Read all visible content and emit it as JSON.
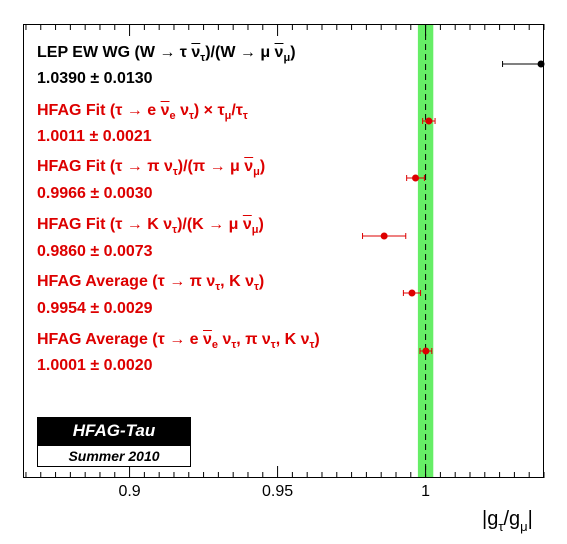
{
  "chart_data": {
    "type": "scatter",
    "xlabel": "|gτ/gμ|",
    "xlim": [
      0.864,
      1.04
    ],
    "xticks": [
      "0.9",
      "0.95",
      "1"
    ],
    "reference_band": {
      "center": 1.0,
      "low": 0.9974,
      "high": 1.0026,
      "color": "#66ee66",
      "line_style": "dashed"
    },
    "marker_color": "#dd0000",
    "measurements": [
      {
        "label_parts": [
          "LEP EW WG (W → τ ",
          "ν",
          "τ",
          ")/(W → μ ",
          "ν",
          "μ",
          ")"
        ],
        "value_text": "1.0390 ± 0.0130",
        "value": 1.039,
        "error": 0.013,
        "color": "#000000"
      },
      {
        "label_parts": [
          "HFAG Fit (τ → e ",
          "ν",
          "e",
          " ν",
          "τ",
          ") × τ",
          "μ",
          "/τ",
          "τ"
        ],
        "value_text": "1.0011 ± 0.0021",
        "value": 1.0011,
        "error": 0.0021,
        "color": "#dd0000"
      },
      {
        "label_parts": [
          "HFAG Fit (τ → π ν",
          "τ",
          ")/(π → μ ",
          "ν",
          "μ",
          ")"
        ],
        "value_text": "0.9966 ± 0.0030",
        "value": 0.9966,
        "error": 0.003,
        "color": "#dd0000"
      },
      {
        "label_parts": [
          "HFAG Fit (τ → K ν",
          "τ",
          ")/(K → μ ",
          "ν",
          "μ",
          ")"
        ],
        "value_text": "0.9860 ± 0.0073",
        "value": 0.986,
        "error": 0.0073,
        "color": "#dd0000"
      },
      {
        "label_parts": [
          "HFAG Average (τ → π ν",
          "τ",
          ",  K ν",
          "τ",
          ")"
        ],
        "value_text": "0.9954 ± 0.0029",
        "value": 0.9954,
        "error": 0.0029,
        "color": "#dd0000"
      },
      {
        "label_parts": [
          "HFAG Average (τ → e ",
          "ν",
          "e",
          " ν",
          "τ",
          ",  π ν",
          "τ",
          ",  K ν",
          "τ",
          ")"
        ],
        "value_text": "1.0001 ± 0.0020",
        "value": 1.0001,
        "error": 0.002,
        "color": "#dd0000"
      }
    ]
  },
  "badge": {
    "title": "HFAG-Tau",
    "subtitle": "Summer 2010"
  }
}
